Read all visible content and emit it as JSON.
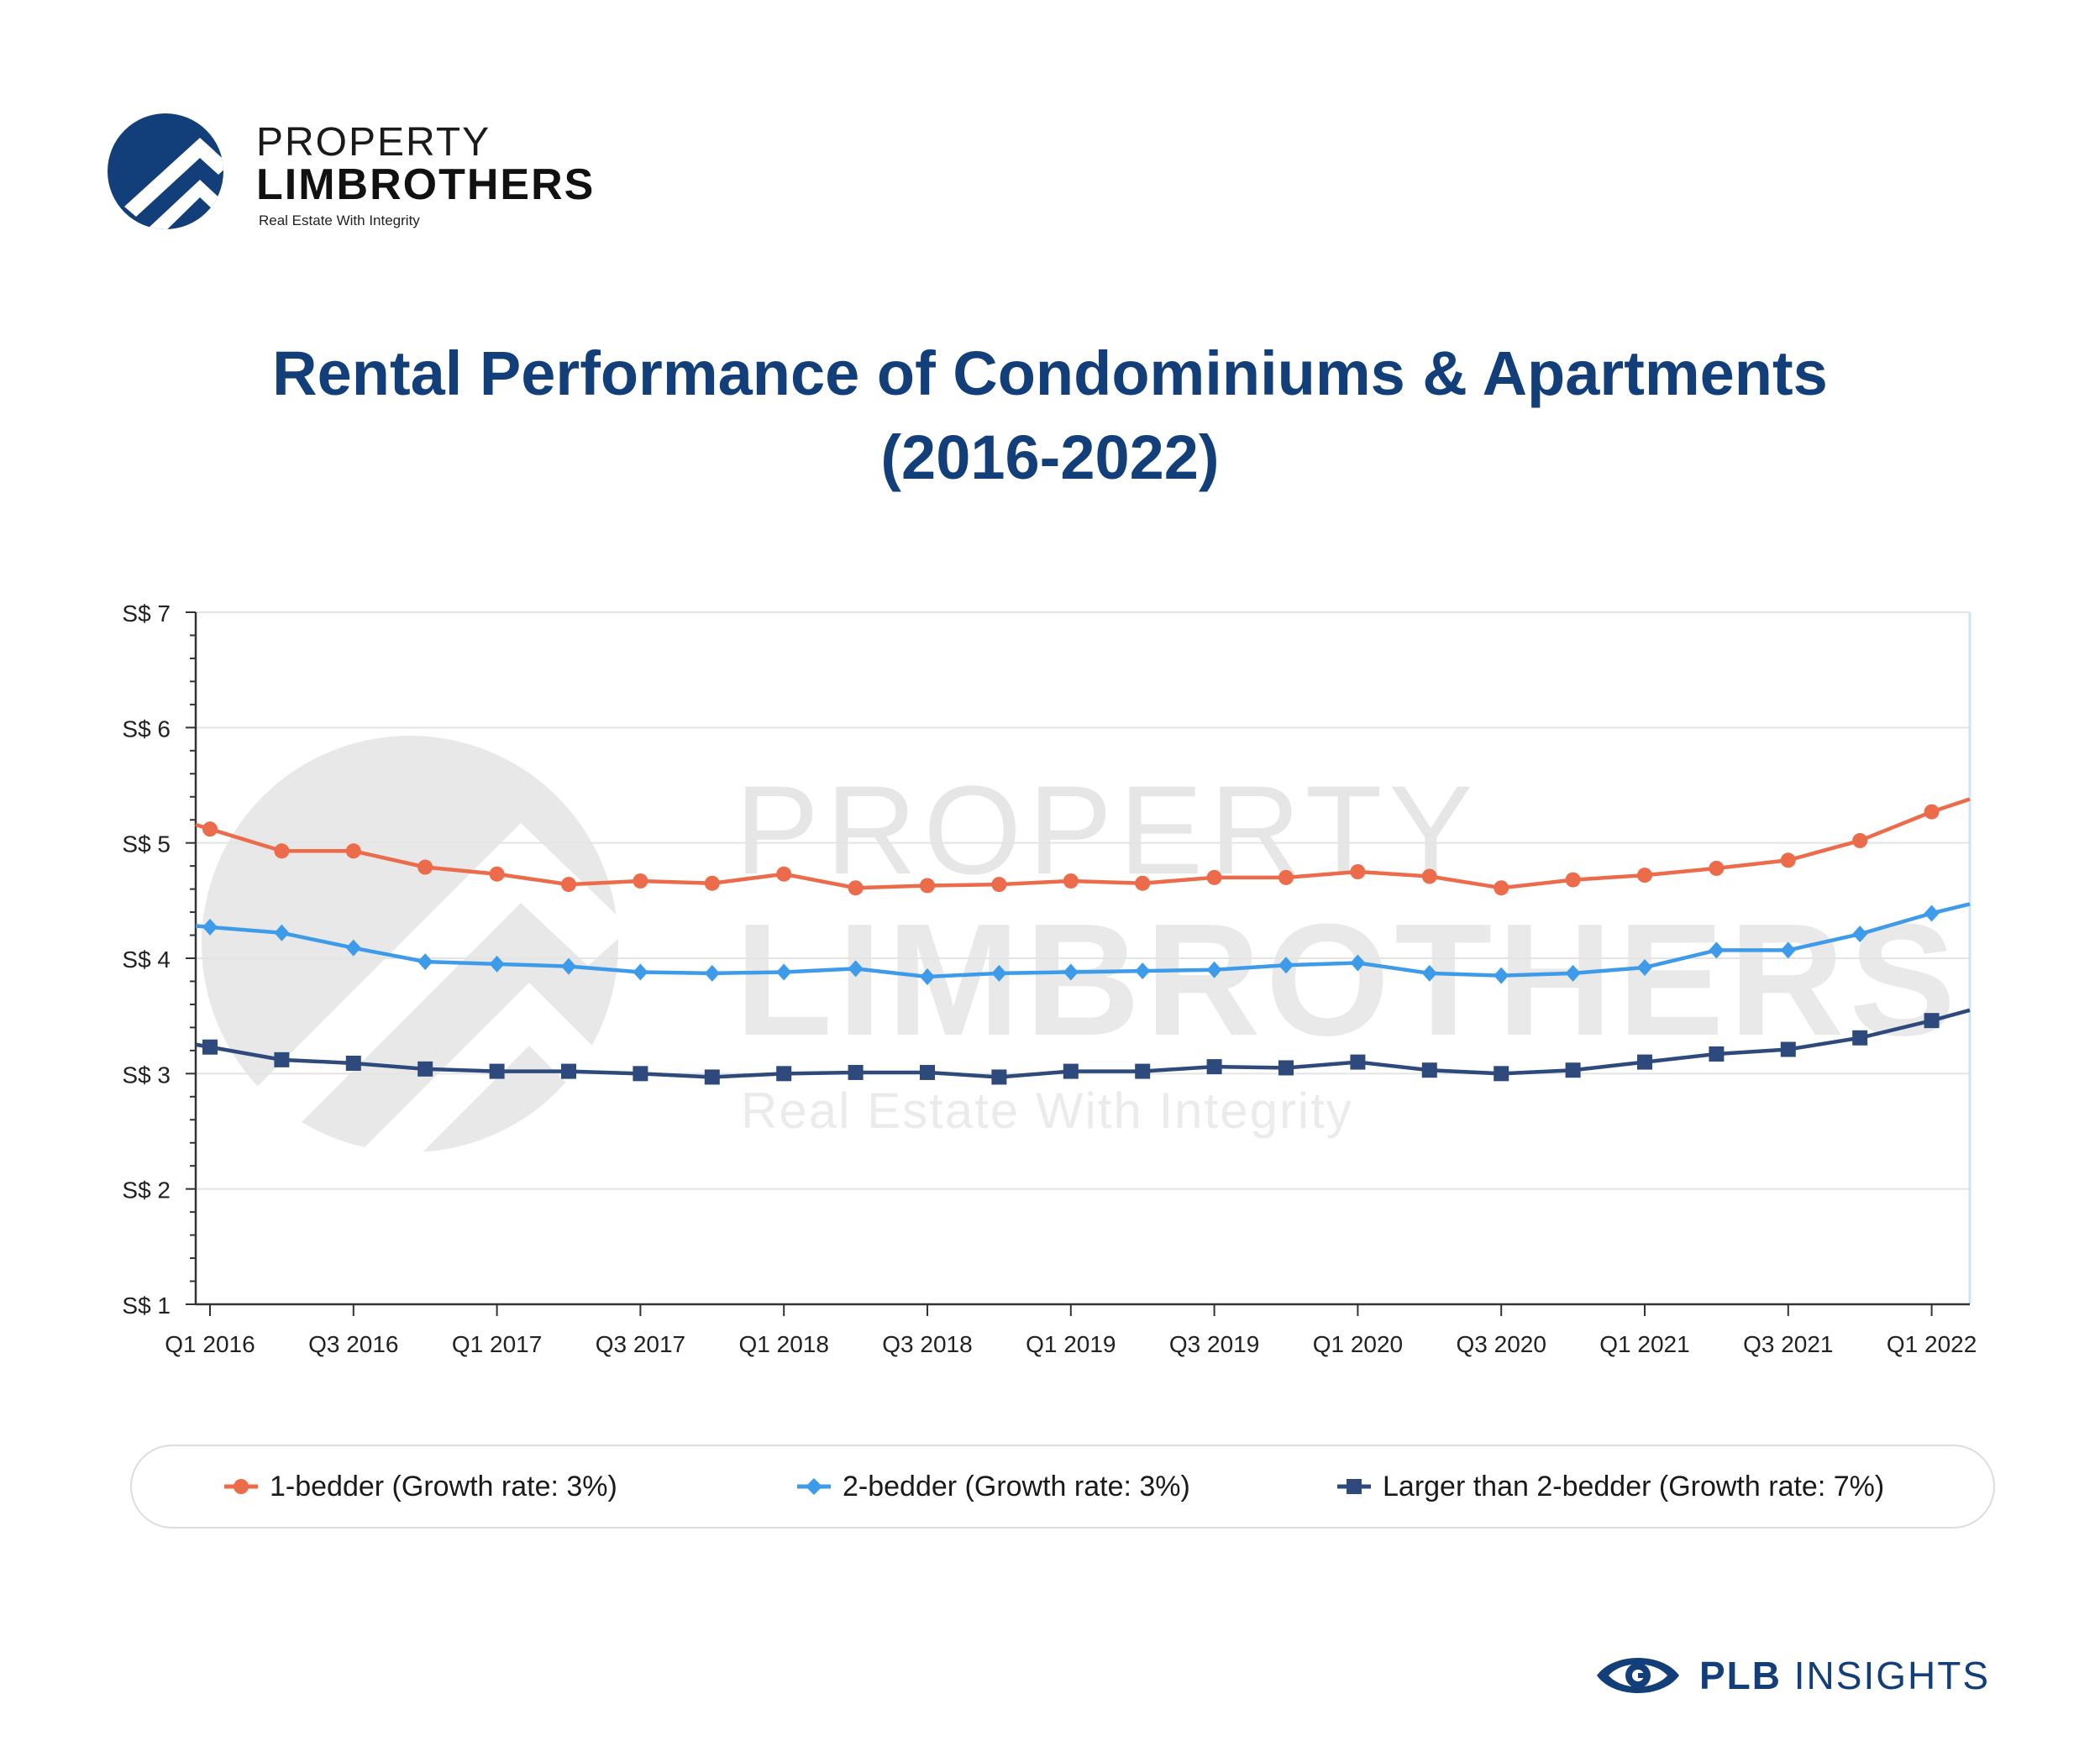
{
  "brand": {
    "name_line1": "PROPERTY",
    "name_line2": "LIMBROTHERS",
    "tagline": "Real Estate With Integrity"
  },
  "footer": {
    "brand_bold": "PLB",
    "brand_rest": "INSIGHTS"
  },
  "colors": {
    "title": "#123e7a",
    "one_bedder": "#ec6b4a",
    "two_bedder": "#3d9be9",
    "larger": "#2e4a7c",
    "watermark": "#e6e6e6"
  },
  "chart_data": {
    "type": "line",
    "title_line1": "Rental Performance of Condominiums & Apartments",
    "title_line2": "(2016-2022)",
    "y_ticks": [
      "S$ 1",
      "S$ 2",
      "S$ 3",
      "S$ 4",
      "S$ 5",
      "S$ 6",
      "S$ 7"
    ],
    "ylim": [
      1,
      7
    ],
    "x_tick_labels": [
      "Q1 2016",
      "Q3 2016",
      "Q1 2017",
      "Q3 2017",
      "Q1 2018",
      "Q3 2018",
      "Q1 2019",
      "Q3 2019",
      "Q1 2020",
      "Q3 2020",
      "Q1 2021",
      "Q3 2021",
      "Q1 2022"
    ],
    "categories": [
      "Q1 2016",
      "Q2 2016",
      "Q3 2016",
      "Q4 2016",
      "Q1 2017",
      "Q2 2017",
      "Q3 2017",
      "Q4 2017",
      "Q1 2018",
      "Q2 2018",
      "Q3 2018",
      "Q4 2018",
      "Q1 2019",
      "Q2 2019",
      "Q3 2019",
      "Q4 2019",
      "Q1 2020",
      "Q2 2020",
      "Q3 2020",
      "Q4 2020",
      "Q1 2021",
      "Q2 2021",
      "Q3 2021",
      "Q4 2021",
      "Q1 2022"
    ],
    "grid": true,
    "legend_position": "bottom",
    "series": [
      {
        "name": "1-bedder (Growth rate: 3%)",
        "marker": "circle",
        "values": [
          5.12,
          4.93,
          4.93,
          4.79,
          4.73,
          4.64,
          4.67,
          4.65,
          4.73,
          4.61,
          4.63,
          4.64,
          4.67,
          4.65,
          4.7,
          4.7,
          4.75,
          4.71,
          4.61,
          4.68,
          4.72,
          4.78,
          4.85,
          5.02,
          5.27
        ],
        "end_value": 5.38
      },
      {
        "name": "2-bedder (Growth rate: 3%)",
        "marker": "diamond",
        "values": [
          4.27,
          4.22,
          4.09,
          3.97,
          3.95,
          3.93,
          3.88,
          3.87,
          3.88,
          3.91,
          3.84,
          3.87,
          3.88,
          3.89,
          3.9,
          3.94,
          3.96,
          3.87,
          3.85,
          3.87,
          3.92,
          4.07,
          4.07,
          4.21,
          4.39
        ],
        "end_value": 4.47
      },
      {
        "name": "Larger than 2-bedder (Growth rate: 7%)",
        "marker": "square",
        "values": [
          3.23,
          3.12,
          3.09,
          3.04,
          3.02,
          3.02,
          3.0,
          2.97,
          3.0,
          3.01,
          3.01,
          2.97,
          3.02,
          3.02,
          3.06,
          3.05,
          3.1,
          3.03,
          3.0,
          3.03,
          3.1,
          3.17,
          3.21,
          3.31,
          3.46
        ],
        "end_value": 3.55
      }
    ]
  }
}
